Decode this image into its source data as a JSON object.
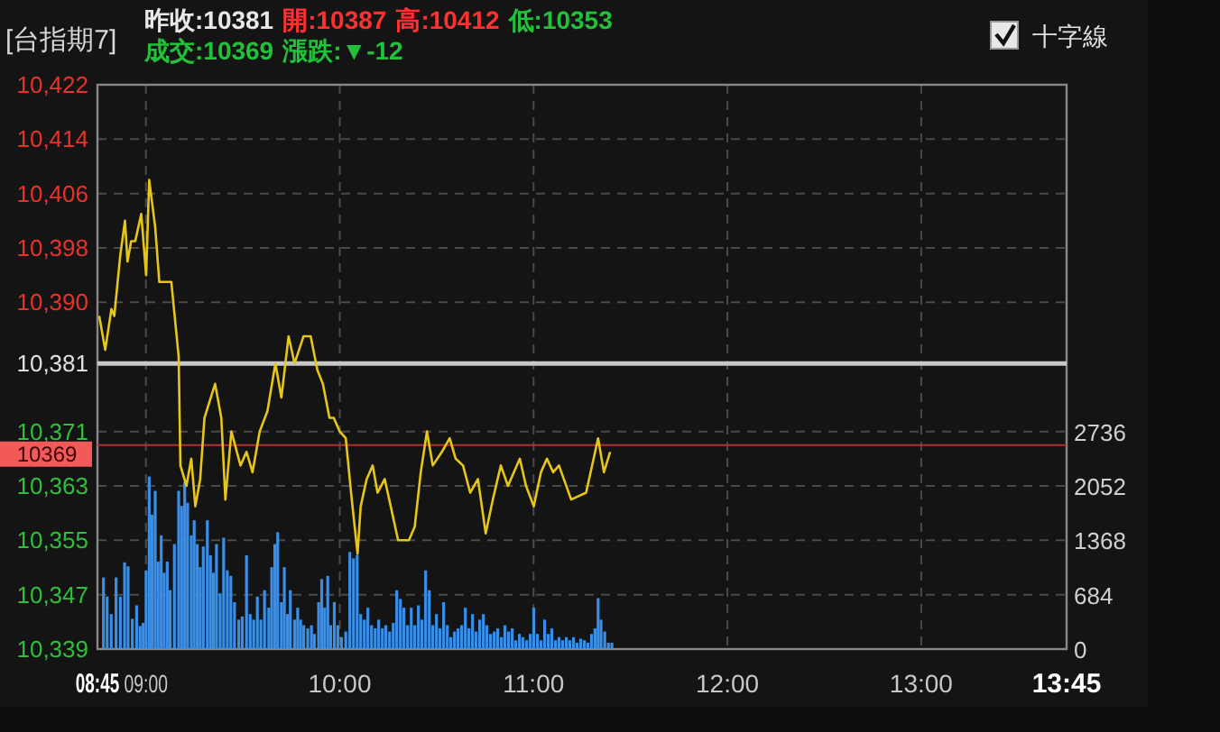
{
  "chart_data": {
    "type": "line",
    "title": "[台指期7]",
    "annotations": [
      "昨收:10381",
      "開:10387",
      "高:10412",
      "低:10353",
      "成交:10369",
      "漲跌:▼-12",
      "十字線"
    ],
    "xlim": [
      8.75,
      13.75
    ],
    "xticks": [
      {
        "value": 8.75,
        "label": "08:45"
      },
      {
        "value": 9,
        "label": "09:00"
      },
      {
        "value": 10,
        "label": "10:00"
      },
      {
        "value": 11,
        "label": "11:00"
      },
      {
        "value": 12,
        "label": "12:00"
      },
      {
        "value": 13,
        "label": "13:00"
      },
      {
        "value": 13.75,
        "label": "13:45"
      }
    ],
    "ylim": [
      10339,
      10422
    ],
    "yticks": [
      {
        "value": 10339,
        "label": "10,339"
      },
      {
        "value": 10347,
        "label": "10,347"
      },
      {
        "value": 10355,
        "label": "10,355"
      },
      {
        "value": 10363,
        "label": "10,363"
      },
      {
        "value": 10371,
        "label": "10,371"
      },
      {
        "value": 10381,
        "label": "10,381"
      },
      {
        "value": 10390,
        "label": "10,390"
      },
      {
        "value": 10398,
        "label": "10,398"
      },
      {
        "value": 10406,
        "label": "10,406"
      },
      {
        "value": 10414,
        "label": "10,414"
      },
      {
        "value": 10422,
        "label": "10,422"
      }
    ],
    "y2lim": [
      0,
      7097
    ],
    "y2ticks": [
      0,
      684,
      1368,
      2052,
      2736
    ],
    "grid": true,
    "marker": "none",
    "ref_lines": [
      {
        "axis": "y",
        "value": 10381,
        "color": "#c8c8c8"
      },
      {
        "axis": "y",
        "value": 10369,
        "label": "10369",
        "color": "#b03030"
      }
    ],
    "series": [
      {
        "type": "bar",
        "axis": "y2",
        "color": "#3a8ee6",
        "x": [
          8.781,
          8.8,
          8.821,
          8.846,
          8.868,
          8.89,
          8.908,
          8.93,
          8.952,
          8.97,
          8.986,
          9.001,
          9.017,
          9.032,
          9.048,
          9.063,
          9.079,
          9.094,
          9.11,
          9.125,
          9.147,
          9.169,
          9.184,
          9.2,
          9.215,
          9.234,
          9.249,
          9.265,
          9.28,
          9.296,
          9.317,
          9.333,
          9.348,
          9.364,
          9.383,
          9.401,
          9.42,
          9.438,
          9.457,
          9.479,
          9.497,
          9.519,
          9.538,
          9.556,
          9.575,
          9.593,
          9.612,
          9.634,
          9.649,
          9.665,
          9.68,
          9.699,
          9.714,
          9.73,
          9.745,
          9.767,
          9.783,
          9.798,
          9.814,
          9.835,
          9.854,
          9.869,
          9.891,
          9.907,
          9.922,
          9.938,
          9.953,
          9.972,
          9.99,
          10.009,
          10.031,
          10.052,
          10.071,
          10.09,
          10.108,
          10.127,
          10.145,
          10.164,
          10.183,
          10.201,
          10.22,
          10.238,
          10.257,
          10.276,
          10.294,
          10.313,
          10.331,
          10.35,
          10.369,
          10.387,
          10.406,
          10.424,
          10.443,
          10.462,
          10.48,
          10.499,
          10.517,
          10.536,
          10.555,
          10.573,
          10.592,
          10.61,
          10.629,
          10.648,
          10.666,
          10.685,
          10.703,
          10.722,
          10.741,
          10.759,
          10.778,
          10.797,
          10.815,
          10.834,
          10.852,
          10.871,
          10.89,
          10.908,
          10.927,
          10.945,
          10.964,
          10.983,
          11.001,
          11.02,
          11.038,
          11.057,
          11.076,
          11.094,
          11.113,
          11.131,
          11.15,
          11.169,
          11.187,
          11.206,
          11.224,
          11.243,
          11.262,
          11.28,
          11.299,
          11.317,
          11.333,
          11.348,
          11.367,
          11.386,
          11.404
        ],
        "values": [
          900,
          660,
          440,
          900,
          660,
          1090,
          1040,
          380,
          550,
          290,
          330,
          990,
          2170,
          1690,
          1990,
          1100,
          1430,
          960,
          1100,
          740,
          1320,
          1990,
          1800,
          2100,
          1840,
          1430,
          1620,
          1320,
          1030,
          1290,
          1620,
          1180,
          960,
          1320,
          700,
          1400,
          990,
          920,
          590,
          370,
          410,
          1180,
          440,
          370,
          660,
          370,
          740,
          520,
          1030,
          1320,
          1470,
          590,
          1030,
          440,
          740,
          370,
          520,
          370,
          300,
          260,
          300,
          190,
          590,
          880,
          520,
          920,
          300,
          590,
          300,
          150,
          220,
          1220,
          1140,
          1180,
          440,
          370,
          520,
          300,
          260,
          370,
          260,
          300,
          220,
          330,
          740,
          630,
          520,
          300,
          520,
          300,
          550,
          370,
          990,
          740,
          300,
          440,
          260,
          590,
          300,
          150,
          220,
          260,
          300,
          520,
          260,
          440,
          220,
          370,
          440,
          300,
          190,
          220,
          260,
          150,
          300,
          220,
          260,
          110,
          190,
          150,
          110,
          190,
          520,
          190,
          110,
          370,
          190,
          260,
          110,
          150,
          110,
          150,
          110,
          150,
          80,
          130,
          110,
          80,
          190,
          260,
          640,
          370,
          220,
          80,
          80
        ]
      },
      {
        "color": "#e6c619",
        "x": [
          8.759,
          8.79,
          8.822,
          8.837,
          8.868,
          8.892,
          8.905,
          8.924,
          8.945,
          8.976,
          9.001,
          9.017,
          9.048,
          9.069,
          9.101,
          9.131,
          9.169,
          9.178,
          9.209,
          9.234,
          9.255,
          9.28,
          9.302,
          9.357,
          9.389,
          9.41,
          9.441,
          9.488,
          9.519,
          9.55,
          9.587,
          9.627,
          9.668,
          9.699,
          9.736,
          9.767,
          9.813,
          9.85,
          9.885,
          9.913,
          9.947,
          9.969,
          10.0,
          10.031,
          10.062,
          10.092,
          10.108,
          10.139,
          10.17,
          10.195,
          10.232,
          10.263,
          10.301,
          10.357,
          10.387,
          10.418,
          10.45,
          10.48,
          10.527,
          10.567,
          10.598,
          10.636,
          10.673,
          10.713,
          10.753,
          10.79,
          10.831,
          10.868,
          10.929,
          10.961,
          11.001,
          11.038,
          11.069,
          11.101,
          11.131,
          11.194,
          11.271,
          11.333,
          11.363,
          11.395
        ],
        "values": [
          10388,
          10383,
          10389,
          10388,
          10397,
          10402,
          10396,
          10399,
          10399,
          10403,
          10394,
          10408,
          10401,
          10393,
          10393,
          10393,
          10382,
          10366,
          10363,
          10367,
          10360,
          10364,
          10373,
          10378,
          10373,
          10361,
          10371,
          10366,
          10368,
          10365,
          10371,
          10374,
          10381,
          10376,
          10385,
          10381,
          10385,
          10385,
          10380,
          10378,
          10373,
          10373,
          10371,
          10370,
          10361,
          10353,
          10360,
          10364,
          10366,
          10362,
          10364,
          10360,
          10355,
          10355,
          10357,
          10365,
          10371,
          10366,
          10368,
          10370,
          10367,
          10366,
          10362,
          10364,
          10356,
          10361,
          10366,
          10363,
          10367,
          10363,
          10360,
          10365,
          10367,
          10365,
          10366,
          10361,
          10362,
          10370,
          10365,
          10368
        ]
      }
    ]
  }
}
